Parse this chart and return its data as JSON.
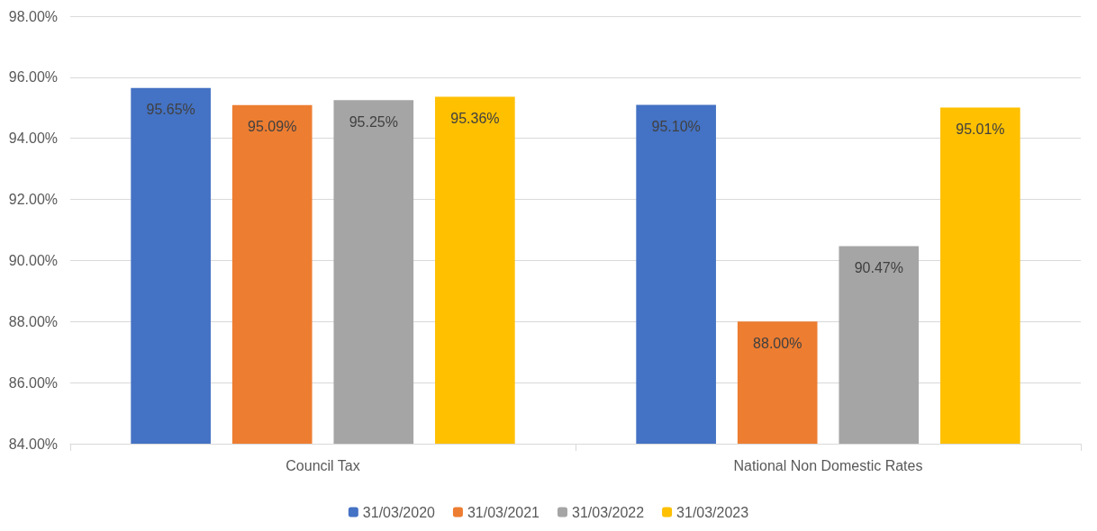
{
  "chart_data": {
    "type": "bar",
    "categories": [
      "Council Tax",
      "National Non Domestic Rates"
    ],
    "series": [
      {
        "name": "31/03/2020",
        "color": "#4472c4",
        "values": [
          95.65,
          95.1
        ],
        "value_labels": [
          "95.65%",
          "95.10%"
        ]
      },
      {
        "name": "31/03/2021",
        "color": "#ed7d31",
        "values": [
          95.09,
          88.0
        ],
        "value_labels": [
          "95.09%",
          "88.00%"
        ]
      },
      {
        "name": "31/03/2022",
        "color": "#a5a5a5",
        "values": [
          95.25,
          90.47
        ],
        "value_labels": [
          "95.25%",
          "90.47%"
        ]
      },
      {
        "name": "31/03/2023",
        "color": "#ffc000",
        "values": [
          95.36,
          95.01
        ],
        "value_labels": [
          "95.36%",
          "95.01%"
        ]
      }
    ],
    "ylim": [
      84,
      98
    ],
    "yticks": [
      {
        "value": 84,
        "label": "84.00%"
      },
      {
        "value": 86,
        "label": "86.00%"
      },
      {
        "value": 88,
        "label": "88.00%"
      },
      {
        "value": 90,
        "label": "90.00%"
      },
      {
        "value": 92,
        "label": "92.00%"
      },
      {
        "value": 94,
        "label": "94.00%"
      },
      {
        "value": 96,
        "label": "96.00%"
      },
      {
        "value": 98,
        "label": "98.00%"
      }
    ],
    "grid": "y",
    "legend": "bottom"
  }
}
